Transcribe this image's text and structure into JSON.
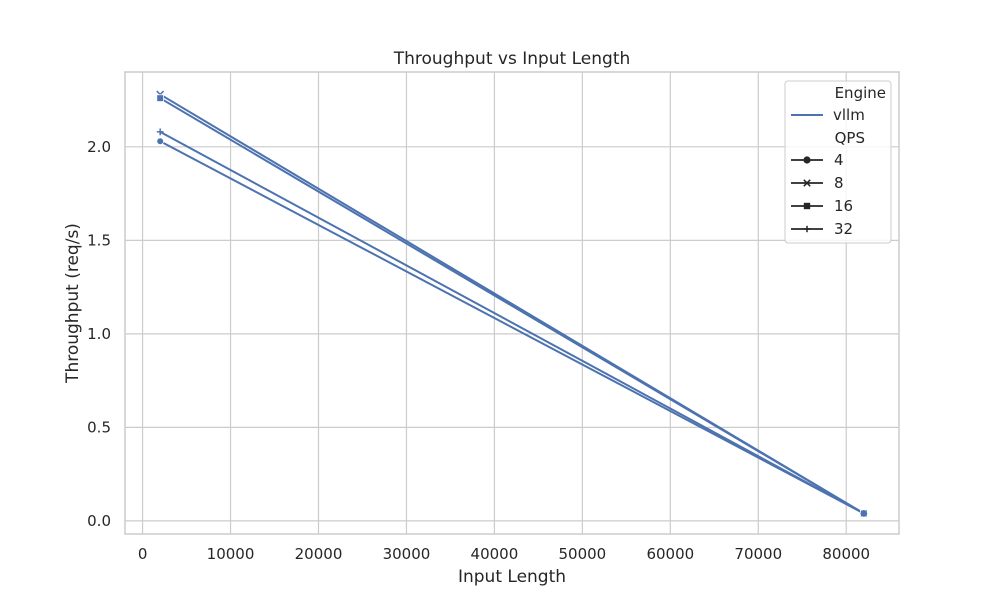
{
  "chart_data": {
    "type": "line",
    "title": "Throughput vs Input Length",
    "xlabel": "Input Length",
    "ylabel": "Throughput (req/s)",
    "xlim": [
      -2000,
      86000
    ],
    "ylim": [
      -0.07,
      2.4
    ],
    "xticks": [
      0,
      10000,
      20000,
      30000,
      40000,
      50000,
      60000,
      70000,
      80000
    ],
    "yticks": [
      0.0,
      0.5,
      1.0,
      1.5,
      2.0
    ],
    "xtick_labels": [
      "0",
      "10000",
      "20000",
      "30000",
      "40000",
      "50000",
      "60000",
      "70000",
      "80000"
    ],
    "ytick_labels": [
      "0.0",
      "0.5",
      "1.0",
      "1.5",
      "2.0"
    ],
    "grid": true,
    "legend": {
      "placement": "top-right",
      "hue_title": "Engine",
      "hue_entries": [
        "vllm"
      ],
      "style_title": "QPS",
      "style_entries": [
        "4",
        "8",
        "16",
        "32"
      ]
    },
    "color": "#4c72b0",
    "series": [
      {
        "engine": "vllm",
        "qps": "4",
        "marker": "circle",
        "x": [
          2000,
          82000
        ],
        "y": [
          2.03,
          0.04
        ]
      },
      {
        "engine": "vllm",
        "qps": "8",
        "marker": "x",
        "x": [
          2000,
          82000
        ],
        "y": [
          2.28,
          0.04
        ]
      },
      {
        "engine": "vllm",
        "qps": "16",
        "marker": "square",
        "x": [
          2000,
          82000
        ],
        "y": [
          2.26,
          0.04
        ]
      },
      {
        "engine": "vllm",
        "qps": "32",
        "marker": "plus",
        "x": [
          2000,
          82000
        ],
        "y": [
          2.08,
          0.04
        ]
      }
    ]
  }
}
